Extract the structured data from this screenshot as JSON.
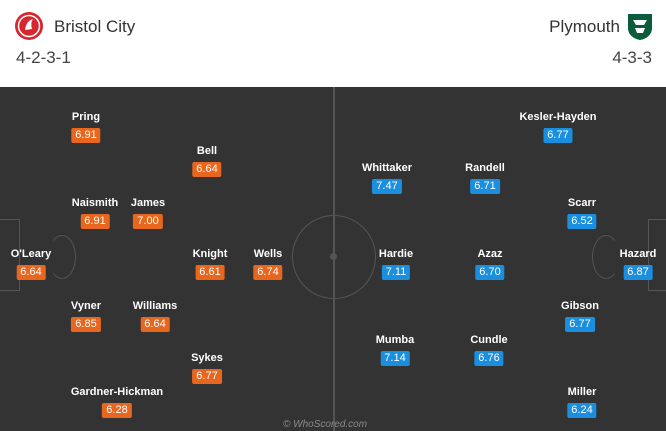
{
  "home": {
    "name": "Bristol City",
    "formation": "4-2-3-1",
    "crest_icon": "bristol-city-crest-icon",
    "rating_color": "#e9661f",
    "players": [
      {
        "name": "Pring",
        "rating": "6.91"
      },
      {
        "name": "Bell",
        "rating": "6.64"
      },
      {
        "name": "Naismith",
        "rating": "6.91"
      },
      {
        "name": "James",
        "rating": "7.00"
      },
      {
        "name": "O'Leary",
        "rating": "6.64"
      },
      {
        "name": "Knight",
        "rating": "6.61"
      },
      {
        "name": "Wells",
        "rating": "6.74"
      },
      {
        "name": "Vyner",
        "rating": "6.85"
      },
      {
        "name": "Williams",
        "rating": "6.64"
      },
      {
        "name": "Sykes",
        "rating": "6.77"
      },
      {
        "name": "Gardner-Hickman",
        "rating": "6.28"
      }
    ]
  },
  "away": {
    "name": "Plymouth",
    "formation": "4-3-3",
    "crest_icon": "plymouth-crest-icon",
    "rating_color": "#1a8fe0",
    "players": [
      {
        "name": "Kesler-Hayden",
        "rating": "6.77"
      },
      {
        "name": "Whittaker",
        "rating": "7.47"
      },
      {
        "name": "Randell",
        "rating": "6.71"
      },
      {
        "name": "Scarr",
        "rating": "6.52"
      },
      {
        "name": "Hardie",
        "rating": "7.11"
      },
      {
        "name": "Azaz",
        "rating": "6.70"
      },
      {
        "name": "Hazard",
        "rating": "6.87"
      },
      {
        "name": "Gibson",
        "rating": "6.77"
      },
      {
        "name": "Mumba",
        "rating": "7.14"
      },
      {
        "name": "Cundle",
        "rating": "6.76"
      },
      {
        "name": "Miller",
        "rating": "6.24"
      }
    ]
  },
  "watermark": "© WhoScored.com"
}
